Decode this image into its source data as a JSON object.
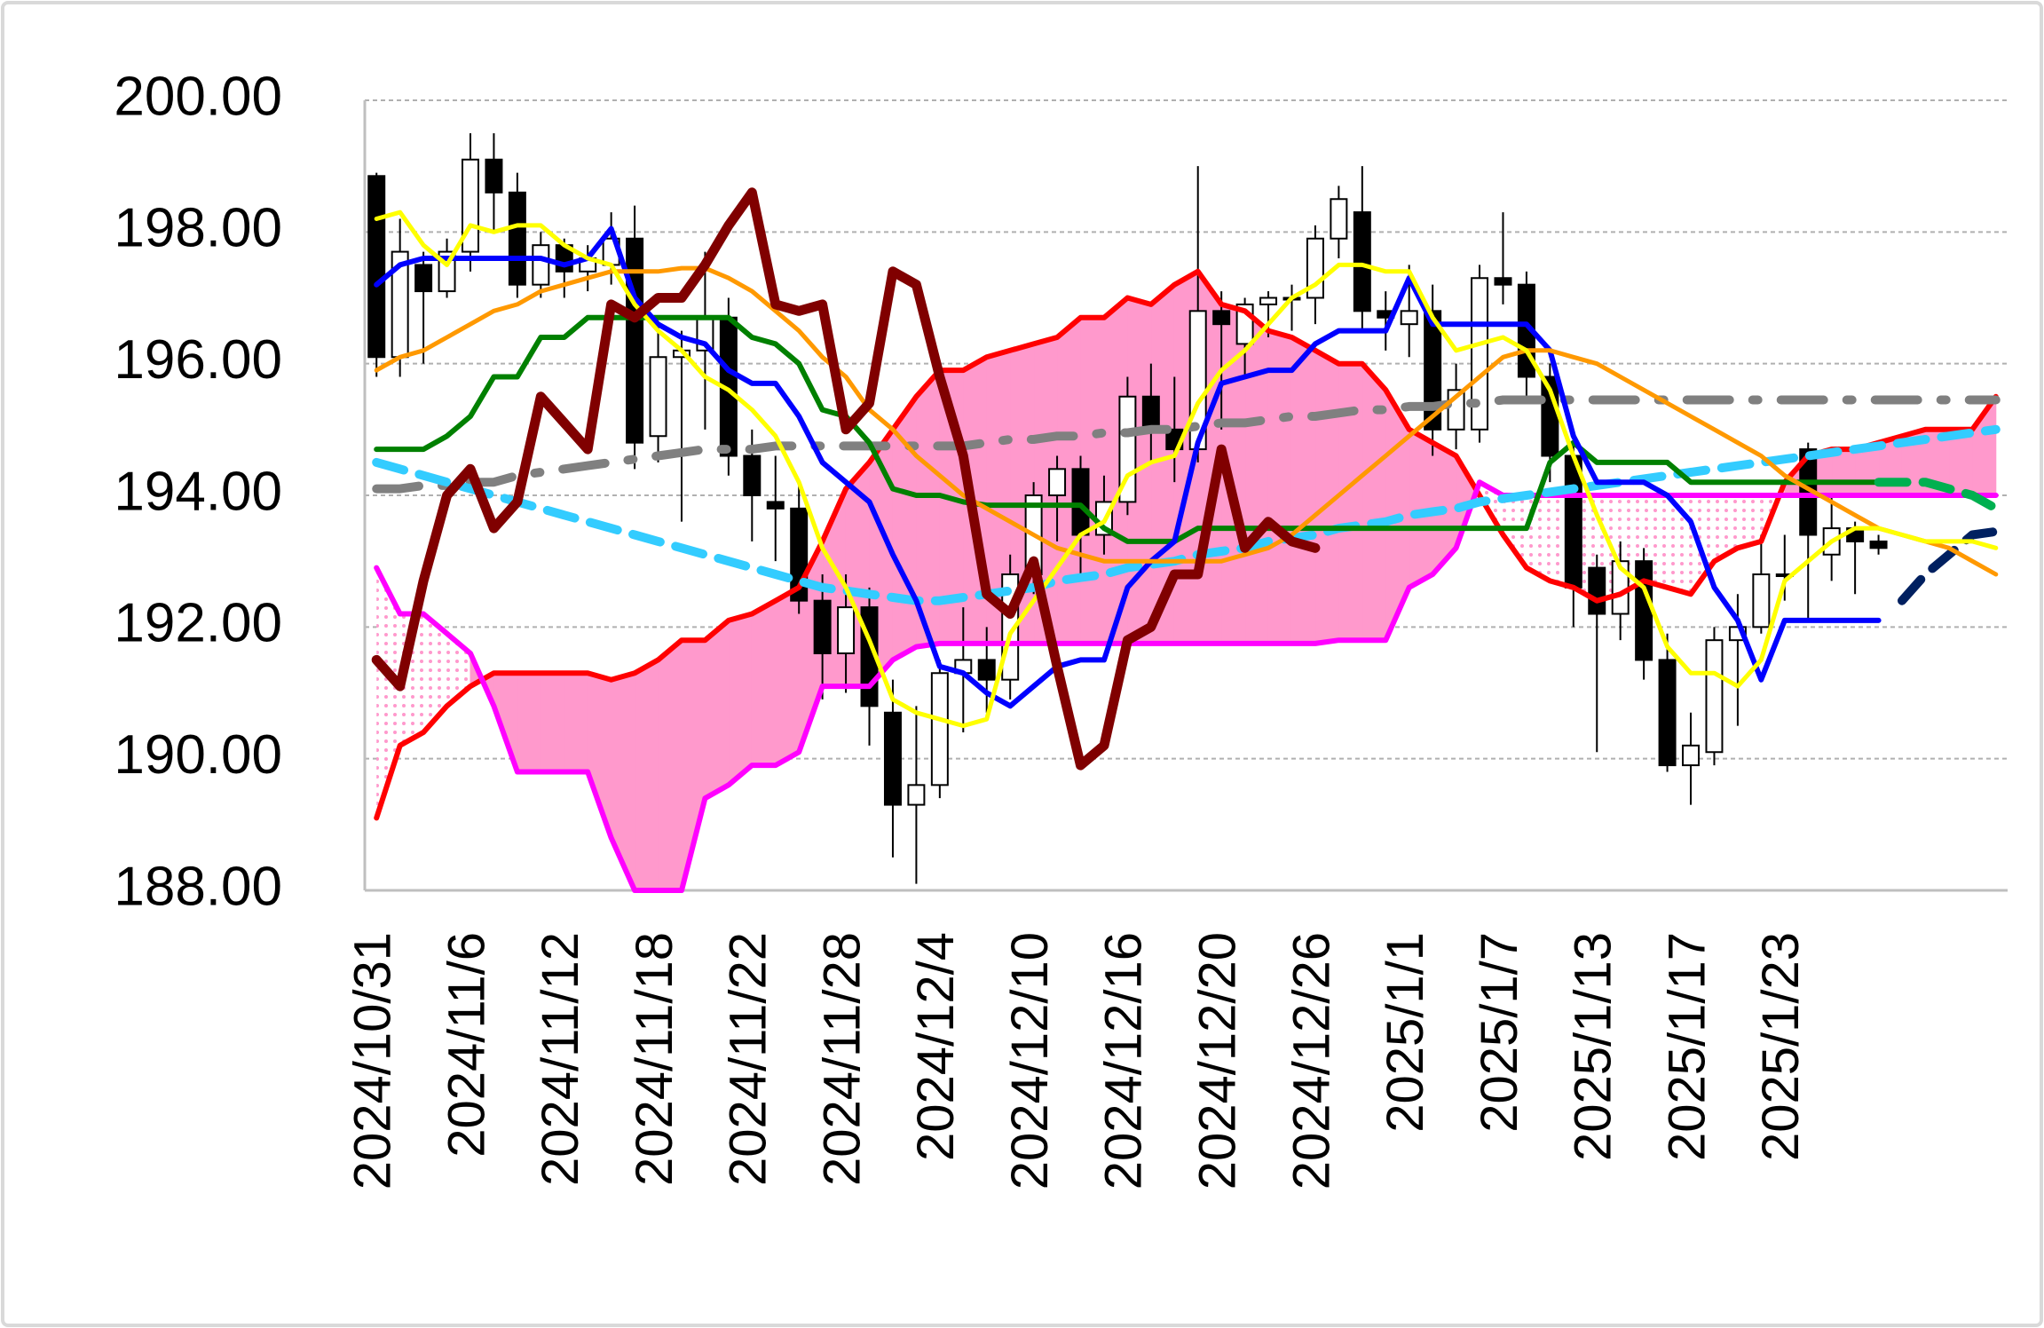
{
  "chart_data": {
    "type": "candlestick",
    "categories": [
      "2024/10/31",
      null,
      null,
      null,
      "2024/11/6",
      null,
      null,
      null,
      "2024/11/12",
      null,
      null,
      null,
      "2024/11/18",
      null,
      null,
      null,
      "2024/11/22",
      null,
      null,
      null,
      "2024/11/28",
      null,
      null,
      null,
      "2024/12/4",
      null,
      null,
      null,
      "2024/12/10",
      null,
      null,
      null,
      "2024/12/16",
      null,
      null,
      null,
      "2024/12/20",
      null,
      null,
      null,
      "2024/12/26",
      null,
      null,
      null,
      "2025/1/1",
      null,
      null,
      null,
      "2025/1/7",
      null,
      null,
      null,
      "2025/1/13",
      null,
      null,
      null,
      "2025/1/17",
      null,
      null,
      null,
      "2025/1/23",
      null,
      null,
      null,
      null,
      null,
      null,
      null,
      null,
      null
    ],
    "ylim": [
      188,
      200
    ],
    "yticks": [
      {
        "value": 188,
        "label": "188.00"
      },
      {
        "value": 190,
        "label": "190.00"
      },
      {
        "value": 192,
        "label": "192.00"
      },
      {
        "value": 194,
        "label": "194.00"
      },
      {
        "value": 196,
        "label": "196.00"
      },
      {
        "value": 198,
        "label": "198.00"
      },
      {
        "value": 200,
        "label": "200.00"
      }
    ],
    "grid": true,
    "up_color": "#ffffff",
    "down_color": "#000000",
    "cloud_color": "#ff99cc",
    "open": [
      198.85,
      196.1,
      197.5,
      197.1,
      197.7,
      199.1,
      198.6,
      197.2,
      197.8,
      197.4,
      197.5,
      197.9,
      194.9,
      196.1,
      196.2,
      196.7,
      194.6,
      193.9,
      193.8,
      192.4,
      191.6,
      192.3,
      190.7,
      189.3,
      189.6,
      191.3,
      191.5,
      191.2,
      192.8,
      194.0,
      194.4,
      193.4,
      193.9,
      195.5,
      195.0,
      194.7,
      196.8,
      196.3,
      196.9,
      197.0,
      197.0,
      197.9,
      198.3,
      196.8,
      196.6,
      196.8,
      195.0,
      195.0,
      197.3,
      197.2,
      195.8,
      194.6,
      192.9,
      192.2,
      193.0,
      191.5,
      189.9,
      190.1,
      191.8,
      192.0,
      192.8,
      194.7,
      193.1,
      193.5,
      193.3,
      null,
      null,
      null,
      null,
      null
    ],
    "high": [
      198.9,
      198.2,
      197.7,
      197.9,
      199.5,
      199.5,
      198.9,
      198.0,
      197.9,
      197.8,
      198.3,
      198.4,
      196.6,
      196.5,
      197.7,
      197.0,
      195.0,
      194.6,
      194.2,
      192.8,
      192.8,
      192.6,
      191.2,
      190.8,
      191.5,
      192.3,
      192.0,
      193.1,
      194.2,
      194.6,
      194.6,
      194.3,
      195.8,
      196.0,
      195.8,
      199.0,
      197.1,
      197.0,
      197.1,
      197.2,
      198.1,
      198.7,
      199.0,
      197.1,
      197.5,
      197.2,
      196.0,
      197.5,
      198.3,
      197.4,
      196.0,
      194.8,
      193.1,
      193.3,
      193.2,
      191.9,
      190.7,
      192.0,
      192.5,
      193.4,
      193.4,
      194.8,
      194.0,
      193.6,
      193.4,
      null,
      null,
      null,
      null,
      null
    ],
    "low": [
      195.8,
      195.8,
      196.0,
      197.0,
      197.4,
      198.0,
      197.0,
      197.0,
      197.0,
      197.1,
      197.2,
      194.4,
      194.5,
      193.6,
      195.0,
      194.3,
      193.3,
      193.0,
      192.2,
      190.9,
      191.0,
      190.2,
      188.5,
      188.1,
      189.4,
      190.4,
      190.7,
      190.9,
      192.5,
      193.3,
      192.8,
      193.1,
      193.7,
      194.5,
      194.2,
      194.5,
      195.0,
      195.8,
      196.4,
      196.5,
      196.6,
      197.6,
      196.5,
      196.2,
      196.1,
      194.6,
      194.7,
      194.8,
      196.9,
      195.5,
      194.2,
      192.0,
      190.1,
      191.8,
      191.2,
      189.8,
      189.3,
      189.9,
      190.5,
      191.9,
      192.4,
      192.1,
      192.7,
      192.5,
      193.1,
      null,
      null,
      null,
      null,
      null
    ],
    "close": [
      196.1,
      197.7,
      197.1,
      197.7,
      199.1,
      198.6,
      197.2,
      197.8,
      197.4,
      197.6,
      197.9,
      194.8,
      196.1,
      196.2,
      196.7,
      194.6,
      194.0,
      193.8,
      192.4,
      191.6,
      192.3,
      190.8,
      189.3,
      189.6,
      191.3,
      191.5,
      191.2,
      192.8,
      194.0,
      194.4,
      193.4,
      193.9,
      195.5,
      195.0,
      194.7,
      196.8,
      196.6,
      196.9,
      197.0,
      197.0,
      197.9,
      198.5,
      196.8,
      196.7,
      196.8,
      195.0,
      195.6,
      197.3,
      197.2,
      195.8,
      194.6,
      192.6,
      192.2,
      193.0,
      191.5,
      189.9,
      190.2,
      191.8,
      192.0,
      192.8,
      192.8,
      193.4,
      193.5,
      193.3,
      193.2,
      null,
      null,
      null,
      null,
      null
    ],
    "series": [
      {
        "color": "#ff0000",
        "style": "solid",
        "role": "span-a",
        "values": [
          189.1,
          190.2,
          190.4,
          190.8,
          191.1,
          191.3,
          191.3,
          191.3,
          191.3,
          191.3,
          191.2,
          191.3,
          191.5,
          191.8,
          191.8,
          192.1,
          192.2,
          192.4,
          192.6,
          193.3,
          194.1,
          194.5,
          195.0,
          195.5,
          195.9,
          195.9,
          196.1,
          196.2,
          196.3,
          196.4,
          196.7,
          196.7,
          197.0,
          196.9,
          197.2,
          197.4,
          196.9,
          196.8,
          196.5,
          196.4,
          196.2,
          196.0,
          196.0,
          195.6,
          195.0,
          194.8,
          194.6,
          194.0,
          193.4,
          192.9,
          192.7,
          192.6,
          192.4,
          192.5,
          192.7,
          192.6,
          192.5,
          193.0,
          193.2,
          193.3,
          194.2,
          194.6,
          194.7,
          194.7,
          194.8,
          194.9,
          195.0,
          195.0,
          195.0,
          195.5
        ]
      },
      {
        "color": "#ff00ff",
        "style": "solid",
        "role": "span-b",
        "values": [
          192.9,
          192.2,
          192.2,
          191.9,
          191.6,
          190.8,
          189.8,
          189.8,
          189.8,
          189.8,
          188.8,
          188.0,
          188.0,
          188.0,
          189.4,
          189.6,
          189.9,
          189.9,
          190.1,
          191.1,
          191.1,
          191.1,
          191.5,
          191.7,
          191.75,
          191.75,
          191.75,
          191.75,
          191.75,
          191.75,
          191.75,
          191.75,
          191.75,
          191.75,
          191.75,
          191.75,
          191.75,
          191.75,
          191.75,
          191.75,
          191.75,
          191.8,
          191.8,
          191.8,
          192.6,
          192.8,
          193.2,
          194.2,
          194.0,
          194.0,
          194.0,
          194.0,
          194.0,
          194.0,
          194.0,
          194.0,
          194.0,
          194.0,
          194.0,
          194.0,
          194.0,
          194.0,
          194.0,
          194.0,
          194.0,
          194.0,
          194.0,
          194.0,
          194.0,
          194.0
        ]
      },
      {
        "color": "#808080",
        "style": "dash-dot",
        "values": [
          194.1,
          194.1,
          194.15,
          194.15,
          194.2,
          194.2,
          194.3,
          194.35,
          194.4,
          194.45,
          194.5,
          194.55,
          194.6,
          194.65,
          194.7,
          194.7,
          194.7,
          194.75,
          194.75,
          194.75,
          194.75,
          194.75,
          194.75,
          194.75,
          194.75,
          194.75,
          194.8,
          194.85,
          194.85,
          194.9,
          194.9,
          194.95,
          194.95,
          195.0,
          195.0,
          195.05,
          195.1,
          195.1,
          195.15,
          195.2,
          195.2,
          195.25,
          195.3,
          195.3,
          195.35,
          195.35,
          195.4,
          195.4,
          195.45,
          195.45,
          195.45,
          195.45,
          195.45,
          195.45,
          195.45,
          195.45,
          195.45,
          195.45,
          195.45,
          195.45,
          195.45,
          195.45,
          195.45,
          195.45,
          195.45,
          195.45,
          195.45,
          195.45,
          195.45,
          195.45
        ]
      },
      {
        "color": "#33ccff",
        "style": "dashed",
        "values": [
          194.5,
          194.4,
          194.3,
          194.2,
          194.1,
          194.0,
          193.9,
          193.8,
          193.7,
          193.6,
          193.5,
          193.4,
          193.3,
          193.2,
          193.1,
          193.0,
          192.9,
          192.8,
          192.7,
          192.6,
          192.55,
          192.5,
          192.45,
          192.4,
          192.4,
          192.45,
          192.5,
          192.55,
          192.6,
          192.7,
          192.75,
          192.8,
          192.9,
          192.95,
          193.0,
          193.1,
          193.15,
          193.2,
          193.3,
          193.35,
          193.4,
          193.5,
          193.55,
          193.6,
          193.7,
          193.75,
          193.8,
          193.9,
          193.95,
          194.0,
          194.05,
          194.1,
          194.15,
          194.2,
          194.25,
          194.3,
          194.35,
          194.4,
          194.45,
          194.5,
          194.55,
          194.6,
          194.65,
          194.7,
          194.75,
          194.8,
          194.85,
          194.9,
          194.95,
          195.0
        ]
      },
      {
        "color": "#008000",
        "style": "solid",
        "values": [
          194.7,
          194.7,
          194.7,
          194.9,
          195.2,
          195.8,
          195.8,
          196.4,
          196.4,
          196.7,
          196.7,
          196.7,
          196.7,
          196.7,
          196.7,
          196.7,
          196.4,
          196.3,
          196.0,
          195.3,
          195.2,
          194.8,
          194.1,
          194.0,
          194.0,
          193.9,
          193.85,
          193.85,
          193.85,
          193.85,
          193.85,
          193.5,
          193.3,
          193.3,
          193.3,
          193.5,
          193.5,
          193.5,
          193.5,
          193.5,
          193.5,
          193.5,
          193.5,
          193.5,
          193.5,
          193.5,
          193.5,
          193.5,
          193.5,
          193.5,
          194.5,
          194.8,
          194.5,
          194.5,
          194.5,
          194.5,
          194.2,
          194.2,
          194.2,
          194.2,
          194.2,
          194.2,
          194.2,
          194.2,
          194.2,
          null,
          null,
          null,
          null,
          null
        ]
      },
      {
        "color": "#00b050",
        "style": "dashed",
        "values": [
          null,
          null,
          null,
          null,
          null,
          null,
          null,
          null,
          null,
          null,
          null,
          null,
          null,
          null,
          null,
          null,
          null,
          null,
          null,
          null,
          null,
          null,
          null,
          null,
          null,
          null,
          null,
          null,
          null,
          null,
          null,
          null,
          null,
          null,
          null,
          null,
          null,
          null,
          null,
          null,
          null,
          null,
          null,
          null,
          null,
          null,
          null,
          null,
          null,
          null,
          null,
          null,
          null,
          null,
          null,
          null,
          null,
          null,
          null,
          null,
          null,
          null,
          null,
          null,
          194.2,
          194.2,
          194.2,
          194.1,
          194.0,
          193.8
        ]
      },
      {
        "color": "#0000ff",
        "style": "solid",
        "values": [
          197.2,
          197.5,
          197.6,
          197.6,
          197.6,
          197.6,
          197.6,
          197.6,
          197.5,
          197.6,
          198.05,
          197.0,
          196.6,
          196.4,
          196.3,
          195.9,
          195.7,
          195.7,
          195.2,
          194.5,
          194.2,
          193.9,
          193.1,
          192.4,
          191.4,
          191.3,
          191.0,
          190.8,
          191.1,
          191.4,
          191.5,
          191.5,
          192.6,
          193.0,
          193.3,
          194.8,
          195.7,
          195.8,
          195.9,
          195.9,
          196.3,
          196.5,
          196.5,
          196.5,
          197.3,
          196.6,
          196.6,
          196.6,
          196.6,
          196.6,
          196.2,
          194.9,
          194.2,
          194.2,
          194.2,
          194.0,
          193.6,
          192.6,
          192.1,
          191.2,
          192.1,
          192.1,
          192.1,
          192.1,
          192.1,
          null,
          null,
          null,
          null,
          null
        ]
      },
      {
        "color": "#002060",
        "style": "dashed",
        "values": [
          null,
          null,
          null,
          null,
          null,
          null,
          null,
          null,
          null,
          null,
          null,
          null,
          null,
          null,
          null,
          null,
          null,
          null,
          null,
          null,
          null,
          null,
          null,
          null,
          null,
          null,
          null,
          null,
          null,
          null,
          null,
          null,
          null,
          null,
          null,
          null,
          null,
          null,
          null,
          null,
          null,
          null,
          null,
          null,
          null,
          null,
          null,
          null,
          null,
          null,
          null,
          null,
          null,
          null,
          null,
          null,
          null,
          null,
          null,
          null,
          null,
          null,
          null,
          null,
          null,
          192.4,
          192.8,
          193.1,
          193.4,
          193.45
        ]
      },
      {
        "color": "#ff9900",
        "style": "thin",
        "values": [
          195.9,
          196.1,
          196.2,
          196.4,
          196.6,
          196.8,
          196.9,
          197.1,
          197.2,
          197.3,
          197.4,
          197.4,
          197.4,
          197.45,
          197.45,
          197.3,
          197.1,
          196.8,
          196.5,
          196.1,
          195.8,
          195.3,
          195.0,
          194.6,
          194.3,
          194.0,
          193.8,
          193.6,
          193.4,
          193.2,
          193.1,
          193.0,
          193.0,
          193.0,
          193.0,
          193.0,
          193.0,
          193.1,
          193.2,
          193.4,
          193.7,
          194.0,
          194.3,
          194.6,
          194.9,
          195.2,
          195.5,
          195.8,
          196.1,
          196.2,
          196.2,
          196.1,
          196.0,
          195.8,
          195.6,
          195.4,
          195.2,
          195.0,
          194.8,
          194.6,
          194.3,
          194.1,
          193.9,
          193.7,
          193.5,
          193.4,
          193.3,
          193.2,
          193.0,
          192.8
        ]
      },
      {
        "color": "#ffff00",
        "style": "thin",
        "values": [
          198.2,
          198.3,
          197.8,
          197.5,
          198.1,
          198.0,
          198.1,
          198.1,
          197.8,
          197.6,
          197.5,
          196.9,
          196.5,
          196.2,
          195.8,
          195.6,
          195.3,
          194.9,
          194.2,
          193.2,
          192.6,
          191.8,
          190.9,
          190.7,
          190.6,
          190.5,
          190.6,
          191.9,
          192.4,
          192.9,
          193.4,
          193.6,
          194.3,
          194.5,
          194.6,
          195.4,
          195.9,
          196.2,
          196.6,
          197.0,
          197.2,
          197.5,
          197.5,
          197.4,
          197.4,
          196.7,
          196.2,
          196.3,
          196.4,
          196.2,
          195.6,
          194.6,
          193.7,
          192.9,
          192.6,
          191.7,
          191.3,
          191.3,
          191.1,
          191.5,
          192.7,
          193.0,
          193.3,
          193.5,
          193.5,
          193.4,
          193.3,
          193.3,
          193.3,
          193.2
        ]
      },
      {
        "color": "#800000",
        "style": "thick",
        "values": [
          191.5,
          191.1,
          192.7,
          194.0,
          194.4,
          193.5,
          193.9,
          195.5,
          195.1,
          194.7,
          196.9,
          196.7,
          197.0,
          197.0,
          197.5,
          198.1,
          198.6,
          196.9,
          196.8,
          196.9,
          195.0,
          195.4,
          197.4,
          197.2,
          195.8,
          194.6,
          192.5,
          192.2,
          193.0,
          191.4,
          189.9,
          190.2,
          191.8,
          192.0,
          192.8,
          192.8,
          194.7,
          193.2,
          193.6,
          193.3,
          193.2,
          null,
          null,
          null,
          null,
          null,
          null,
          null,
          null,
          null,
          null,
          null,
          null,
          null,
          null,
          null,
          null,
          null,
          null,
          null,
          null,
          null,
          null,
          null,
          null,
          null,
          null,
          null,
          null,
          null
        ]
      }
    ]
  }
}
